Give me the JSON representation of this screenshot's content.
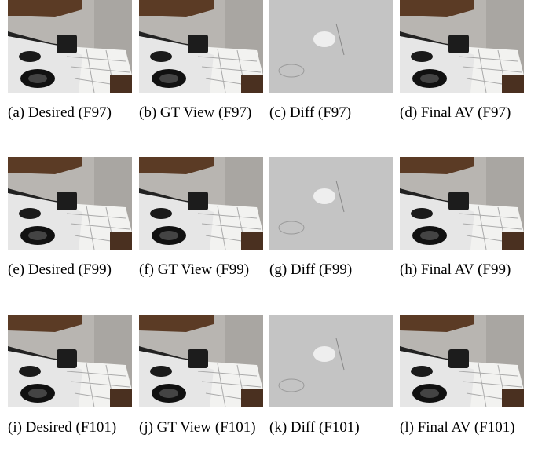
{
  "figure": {
    "panels": [
      {
        "caption": "(a) Desired (F97)"
      },
      {
        "caption": "(b) GT View (F97)"
      },
      {
        "caption": "(c) Diff (F97)"
      },
      {
        "caption": "(d) Final AV (F97)"
      },
      {
        "caption": "(e) Desired (F99)"
      },
      {
        "caption": "(f) GT View (F99)"
      },
      {
        "caption": "(g) Diff (F99)"
      },
      {
        "caption": "(h) Final AV (F99)"
      },
      {
        "caption": "(i) Desired (F101)"
      },
      {
        "caption": "(j) GT View (F101)"
      },
      {
        "caption": "(k) Diff (F101)"
      },
      {
        "caption": "(l) Final AV (F101)"
      }
    ]
  }
}
